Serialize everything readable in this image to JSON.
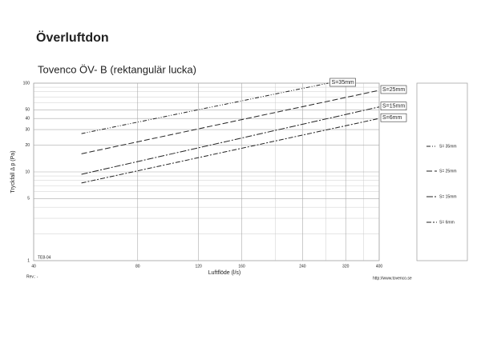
{
  "header": {
    "title": "Överluftdon"
  },
  "chart_data": {
    "type": "line",
    "title": "Tovenco ÖV- B (rektangulär lucka)",
    "x_label": "Luftflöde (l/s)",
    "y_label": "Tryckfall Δ p (Pa)",
    "xlog": true,
    "ylog": true,
    "grid": true,
    "xlim": [
      40,
      400
    ],
    "ylim": [
      1,
      100
    ],
    "xticks": [
      40,
      80,
      120,
      160,
      240,
      320,
      400
    ],
    "yticks": [
      1,
      5,
      10,
      20,
      30,
      40,
      50,
      100
    ],
    "minor_xgrid": [
      200,
      280,
      360
    ],
    "minor_ygrid": [
      2,
      3,
      4,
      6,
      7,
      8,
      9,
      60,
      70,
      80,
      90
    ],
    "legend": "right",
    "series": [
      {
        "name": "S= 35mm",
        "line_label": "S=35mm",
        "color": "#222222",
        "dash": "5,2,1,2,1,2",
        "x": [
          55,
          285
        ],
        "values": [
          27,
          100
        ]
      },
      {
        "name": "S= 25mm",
        "line_label": "S=25mm",
        "color": "#222222",
        "dash": "7,3",
        "x": [
          55,
          400
        ],
        "values": [
          16,
          83
        ]
      },
      {
        "name": "S= 15mm",
        "line_label": "S=15mm",
        "color": "#222222",
        "dash": "8,2,2,2",
        "x": [
          55,
          400
        ],
        "values": [
          9.4,
          54
        ]
      },
      {
        "name": "S= 6mm",
        "line_label": "S=6mm",
        "color": "#222222",
        "dash": "6,2,2,2",
        "x": [
          55,
          400
        ],
        "values": [
          7.5,
          40
        ]
      }
    ]
  },
  "footer": {
    "code": "TE8-04",
    "revision": "Rev.: -",
    "url": "http://www.tovenco.se"
  }
}
